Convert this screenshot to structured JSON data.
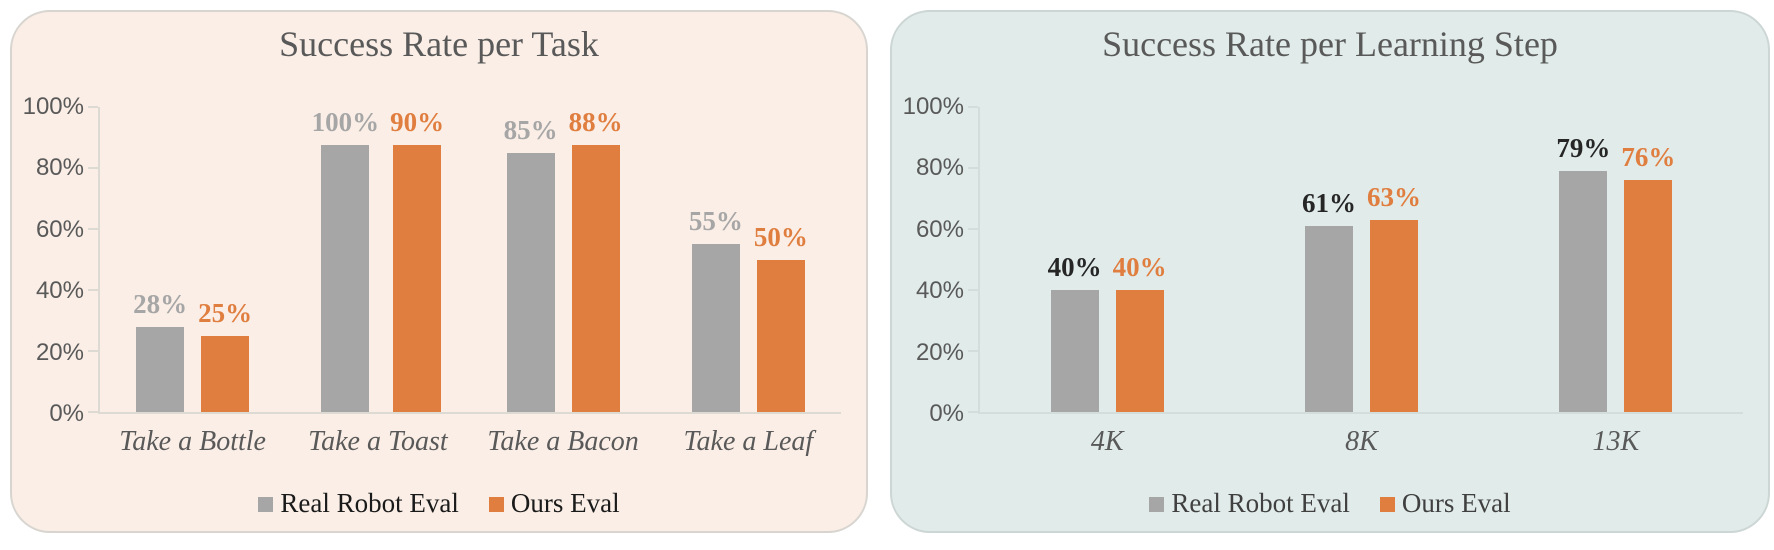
{
  "figure": {
    "background": "#ffffff"
  },
  "chart_data": [
    {
      "type": "bar",
      "title": "Success Rate per Task",
      "panel_background": "#faeee6",
      "panel_border_color": "#d8d5d0",
      "axis_color": "#ddd9d3",
      "categories": [
        "Take a Bottle",
        "Take a Toast",
        "Take a Bacon",
        "Take a Leaf"
      ],
      "series": [
        {
          "name": "Real Robot Eval",
          "color": "#a6a6a6",
          "label_color": "#a6a6a6",
          "values": [
            28,
            100,
            85,
            55
          ],
          "labels": [
            "28%",
            "100%",
            "85%",
            "55%"
          ]
        },
        {
          "name": "Ours Eval",
          "color": "#e07e40",
          "label_color": "#e07e40",
          "values": [
            25,
            90,
            88,
            50
          ],
          "labels": [
            "25%",
            "90%",
            "88%",
            "50%"
          ]
        }
      ],
      "y_ticks": [
        "100%",
        "80%",
        "60%",
        "40%",
        "20%",
        "0%"
      ],
      "ylim": [
        0,
        100
      ],
      "grid": false,
      "legend_position": "bottom",
      "legend_text_color": "#1a1a1a",
      "tick_text_color": "#595959",
      "category_text_color": "#595959",
      "title_color": "#595959",
      "value_suffix": "%"
    },
    {
      "type": "bar",
      "title": "Success Rate per Learning Step",
      "panel_background": "#e1ecea",
      "panel_border_color": "#ccd6d4",
      "axis_color": "#d3dedc",
      "categories": [
        "4K",
        "8K",
        "13K"
      ],
      "series": [
        {
          "name": "Real Robot Eval",
          "color": "#a6a6a6",
          "label_color": "#262626",
          "values": [
            40,
            61,
            79
          ],
          "labels": [
            "40%",
            "61%",
            "79%"
          ]
        },
        {
          "name": "Ours Eval",
          "color": "#e07e40",
          "label_color": "#e07e40",
          "values": [
            40,
            63,
            76
          ],
          "labels": [
            "40%",
            "63%",
            "76%"
          ]
        }
      ],
      "y_ticks": [
        "100%",
        "80%",
        "60%",
        "40%",
        "20%",
        "0%"
      ],
      "ylim": [
        0,
        100
      ],
      "grid": false,
      "legend_position": "bottom",
      "legend_text_color": "#404040",
      "tick_text_color": "#595959",
      "category_text_color": "#595959",
      "title_color": "#595959",
      "value_suffix": "%"
    }
  ]
}
